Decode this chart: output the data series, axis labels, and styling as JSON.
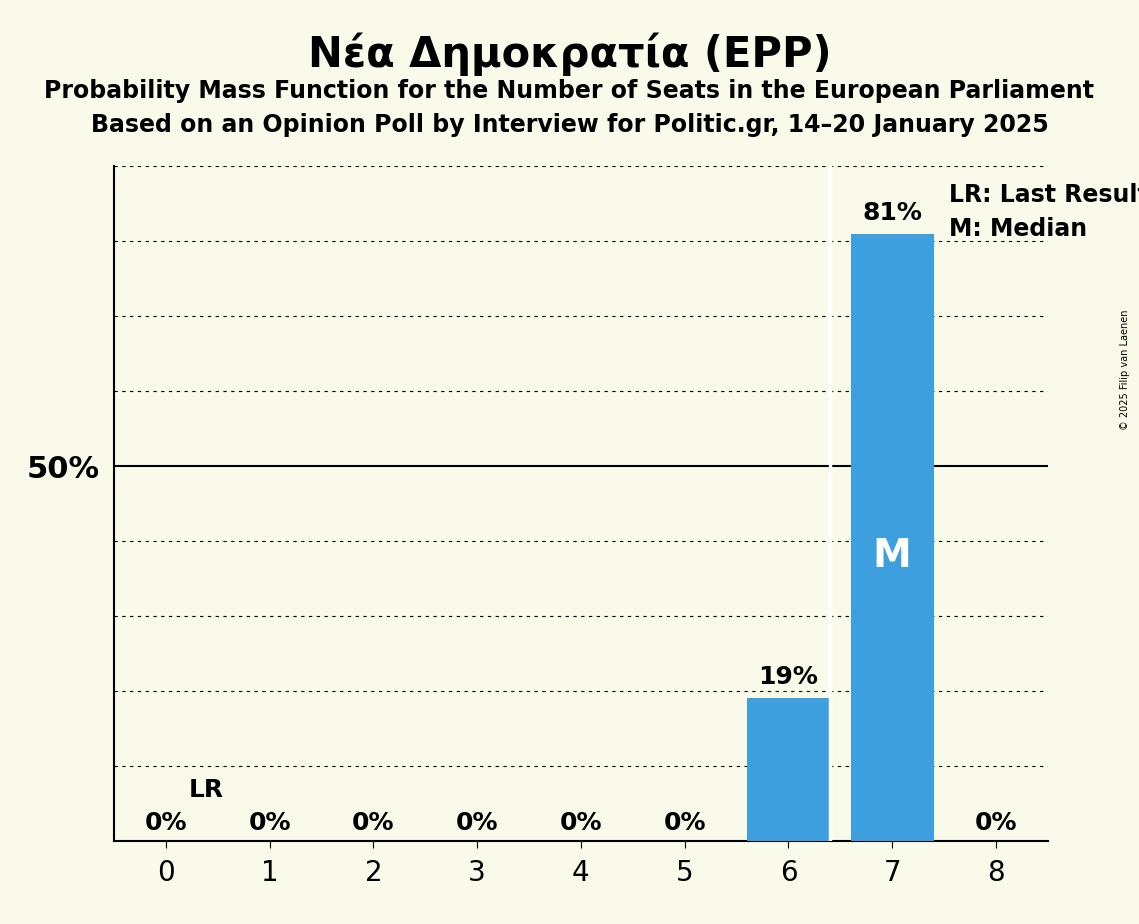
{
  "title": "Νέα Δημοκρατία (EPP)",
  "subtitle1": "Probability Mass Function for the Number of Seats in the European Parliament",
  "subtitle2": "Based on an Opinion Poll by Interview for Politic.gr, 14–20 January 2025",
  "copyright": "© 2025 Filip van Laenen",
  "seats": [
    0,
    1,
    2,
    3,
    4,
    5,
    6,
    7,
    8
  ],
  "probabilities": [
    0.0,
    0.0,
    0.0,
    0.0,
    0.0,
    0.0,
    0.19,
    0.81,
    0.0
  ],
  "bar_color": "#3d9fde",
  "background_color": "#fafaeb",
  "bar_labels": [
    "0%",
    "0%",
    "0%",
    "0%",
    "0%",
    "0%",
    "19%",
    "81%",
    "0%"
  ],
  "median_seat": 7,
  "last_result_seat": 6,
  "ylabel_50": "50%",
  "legend_lr": "LR: Last Result",
  "legend_m": "M: Median",
  "lr_label": "LR",
  "m_label": "M",
  "ylim_max": 0.9,
  "gridline_positions": [
    0.1,
    0.2,
    0.3,
    0.4,
    0.5,
    0.6,
    0.7,
    0.8,
    0.9
  ],
  "title_fontsize": 30,
  "subtitle_fontsize": 17,
  "bar_label_fontsize": 18,
  "axis_tick_fontsize": 20,
  "ytick_fontsize": 22,
  "legend_fontsize": 17,
  "lr_fontsize": 18,
  "m_fontsize": 28
}
